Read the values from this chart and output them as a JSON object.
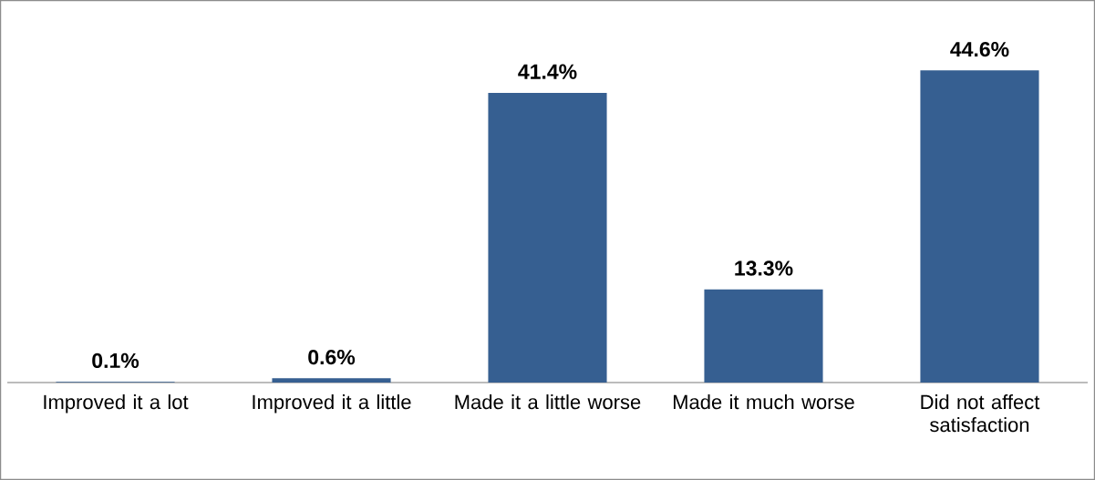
{
  "chart_data": {
    "type": "bar",
    "categories": [
      "Improved it a lot",
      "Improved it a little",
      "Made it a little worse",
      "Made it much worse",
      "Did not affect satisfaction"
    ],
    "values": [
      0.1,
      0.6,
      41.4,
      13.3,
      44.6
    ],
    "value_labels": [
      "0.1%",
      "0.6%",
      "41.4%",
      "13.3%",
      "44.6%"
    ],
    "color": "#365f91"
  }
}
